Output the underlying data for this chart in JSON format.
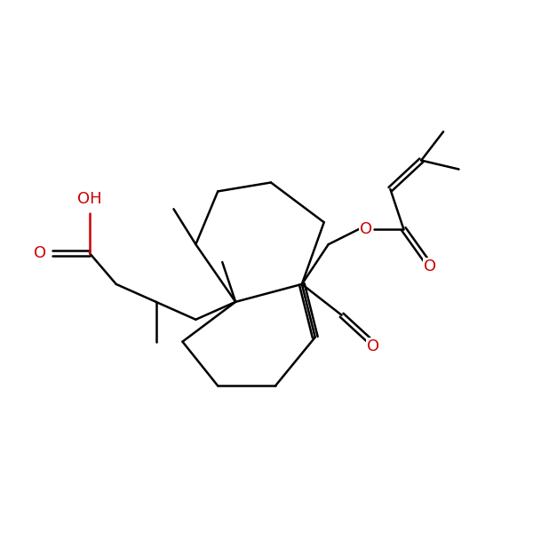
{
  "bg_color": "#ffffff",
  "bond_color": "#000000",
  "o_color": "#cc0000",
  "lw": 1.8,
  "dbo": 0.055,
  "figsize": [
    6.0,
    6.0
  ],
  "dpi": 100,
  "xlim": [
    -1.0,
    11.0
  ],
  "ylim": [
    -1.0,
    11.0
  ],
  "fontsize": 13
}
